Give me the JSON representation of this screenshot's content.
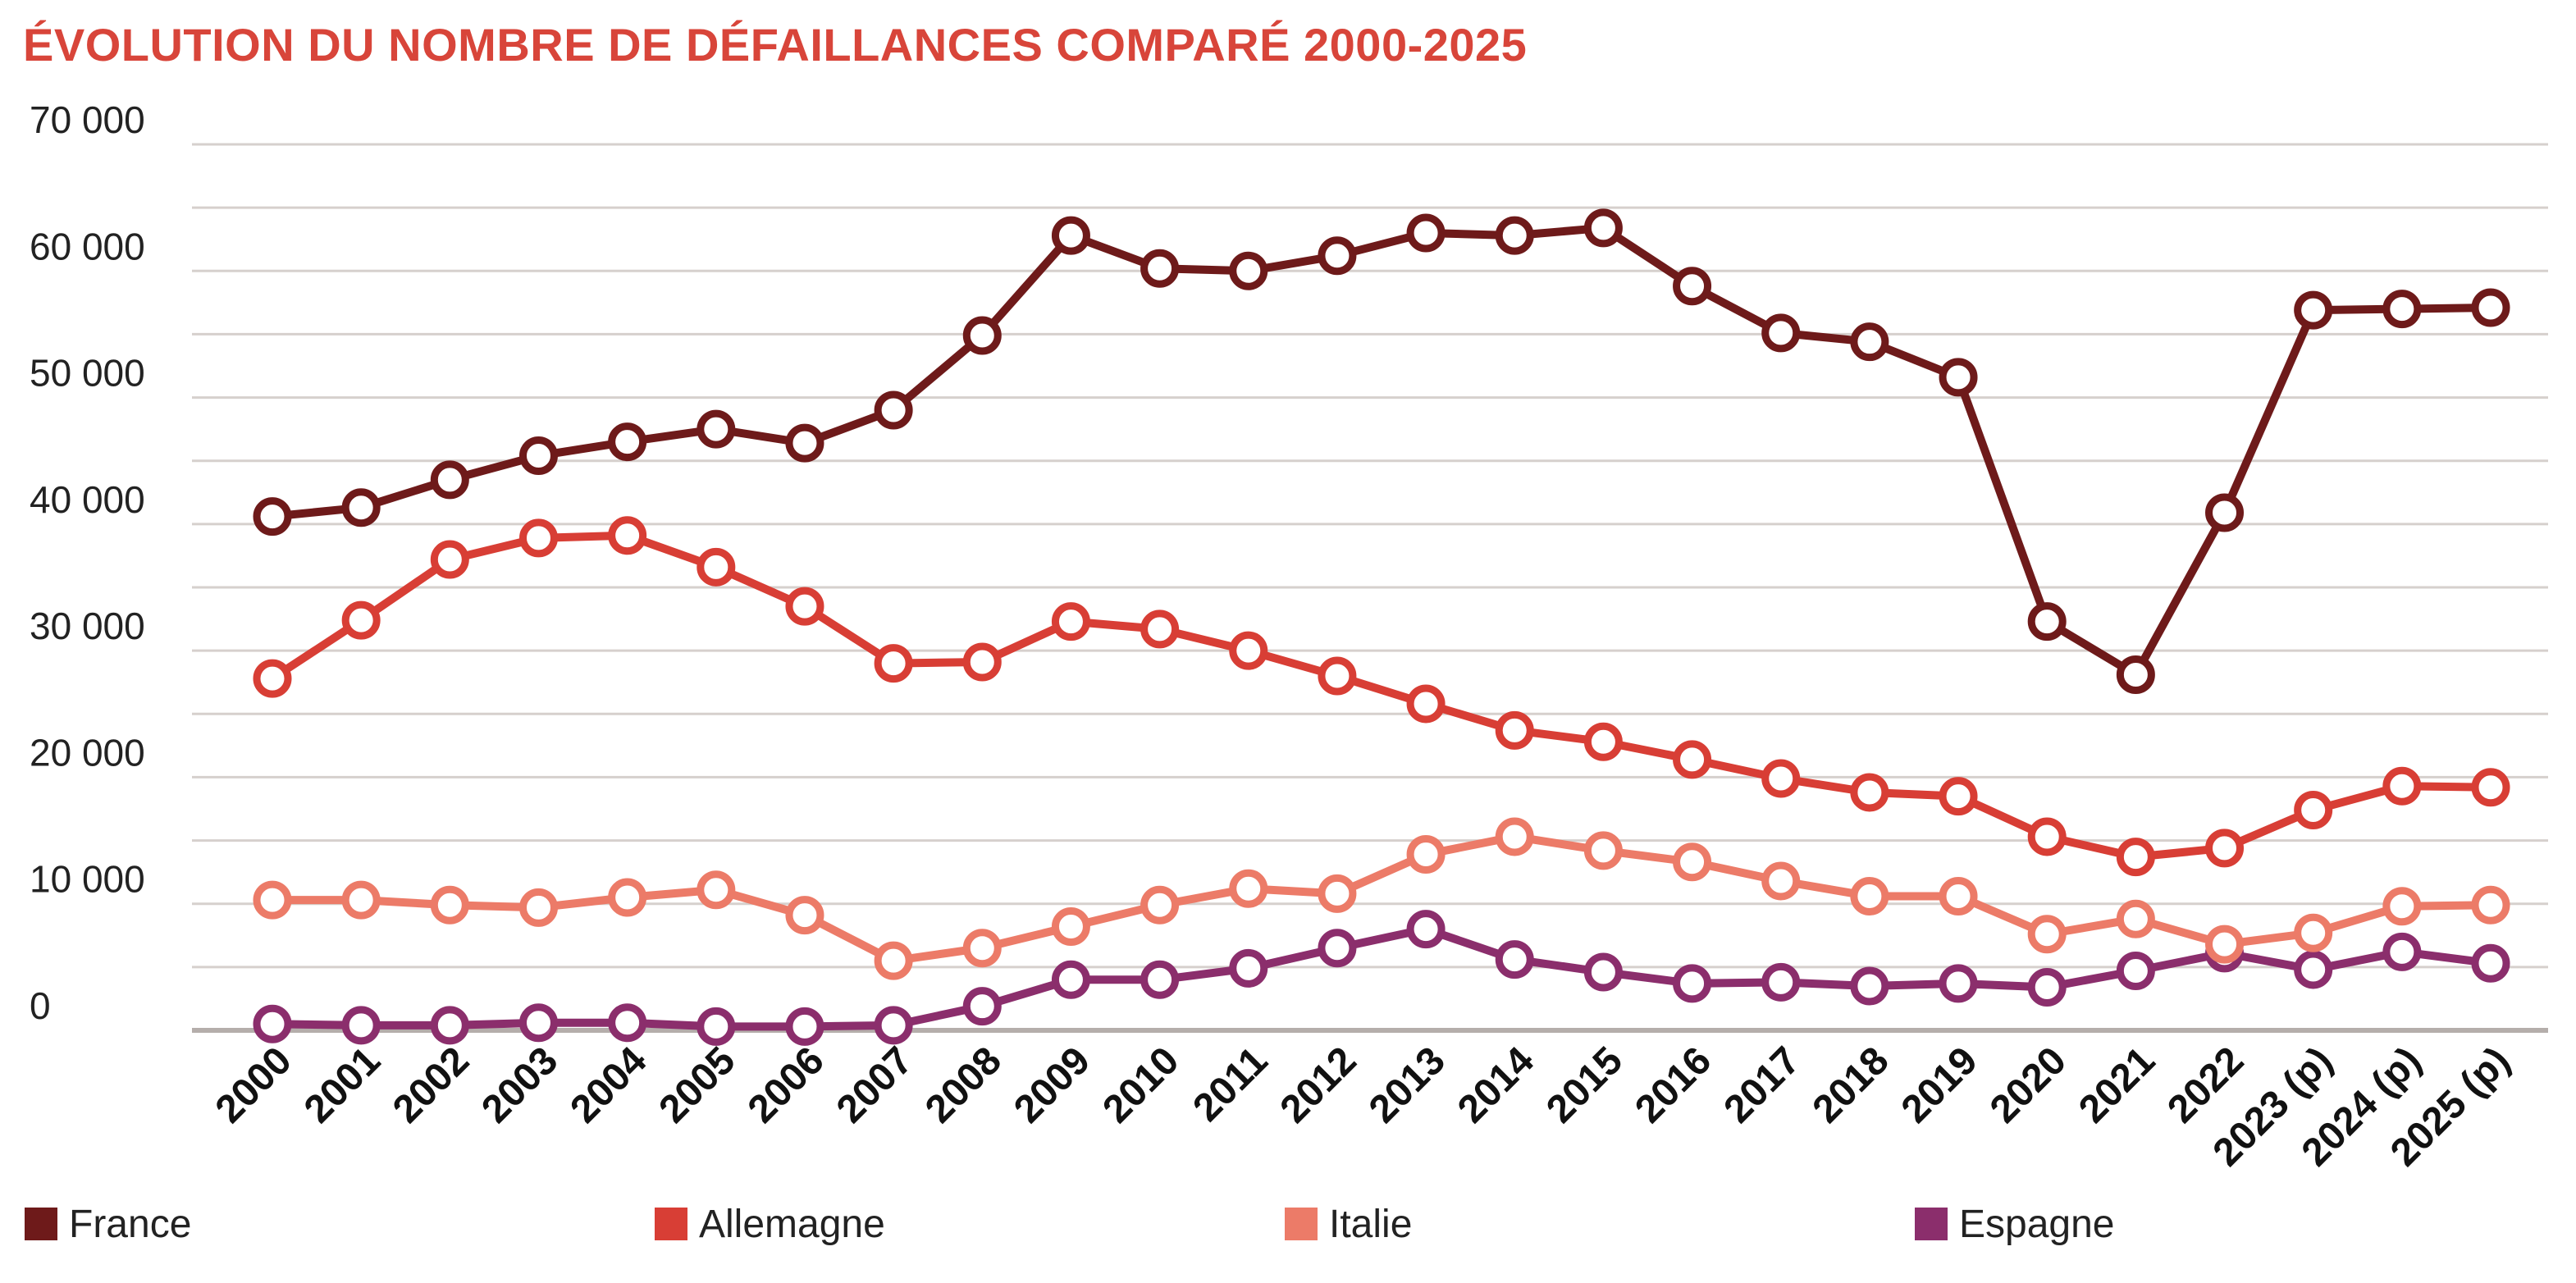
{
  "chart_data": {
    "type": "line",
    "title": "ÉVOLUTION DU NOMBRE DE DÉFAILLANCES COMPARÉ 2000-2025",
    "xlabel": "",
    "ylabel": "",
    "ylim": [
      0,
      70000
    ],
    "yticks": [
      {
        "value": 0,
        "label": "0"
      },
      {
        "value": 10000,
        "label": "10 000"
      },
      {
        "value": 20000,
        "label": "20 000"
      },
      {
        "value": 30000,
        "label": "30 000"
      },
      {
        "value": 40000,
        "label": "40 000"
      },
      {
        "value": 50000,
        "label": "50 000"
      },
      {
        "value": 60000,
        "label": "60 000"
      },
      {
        "value": 70000,
        "label": "70 000"
      }
    ],
    "grid": true,
    "legend_position": "bottom",
    "categories": [
      "2000",
      "2001",
      "2002",
      "2003",
      "2004",
      "2005",
      "2006",
      "2007",
      "2008",
      "2009",
      "2010",
      "2011",
      "2012",
      "2013",
      "2014",
      "2015",
      "2016",
      "2017",
      "2018",
      "2019",
      "2020",
      "2021",
      "2022",
      "2023 (p)",
      "2024 (p)",
      "2025 (p)"
    ],
    "series": [
      {
        "name": "France",
        "color": "#6e1a1a",
        "values": [
          40600,
          41300,
          43500,
          45400,
          46500,
          47500,
          46400,
          49000,
          54900,
          62800,
          60200,
          60000,
          61200,
          63000,
          62800,
          63400,
          58800,
          55100,
          54400,
          51600,
          32300,
          28100,
          40900,
          56900,
          57000,
          57100
        ]
      },
      {
        "name": "Allemagne",
        "color": "#d83e35",
        "values": [
          27800,
          32400,
          37200,
          38900,
          39100,
          36600,
          33500,
          29000,
          29100,
          32300,
          31700,
          30000,
          28000,
          25800,
          23700,
          22800,
          21400,
          19900,
          18800,
          18500,
          15300,
          13700,
          14400,
          17400,
          19300,
          19200
        ]
      },
      {
        "name": "Italie",
        "color": "#ec7b68",
        "values": [
          10300,
          10300,
          9900,
          9700,
          10500,
          11100,
          9100,
          5500,
          6500,
          8200,
          9900,
          11200,
          10800,
          13900,
          15300,
          14200,
          13300,
          11800,
          10600,
          10600,
          7600,
          8800,
          6800,
          7700,
          9800,
          9900
        ]
      },
      {
        "name": "Espagne",
        "color": "#8b2e6c",
        "values": [
          500,
          400,
          400,
          600,
          600,
          300,
          300,
          400,
          1900,
          4000,
          4000,
          4900,
          6500,
          8000,
          5600,
          4600,
          3700,
          3800,
          3500,
          3700,
          3400,
          4700,
          6100,
          4800,
          6200,
          5300
        ]
      }
    ]
  }
}
